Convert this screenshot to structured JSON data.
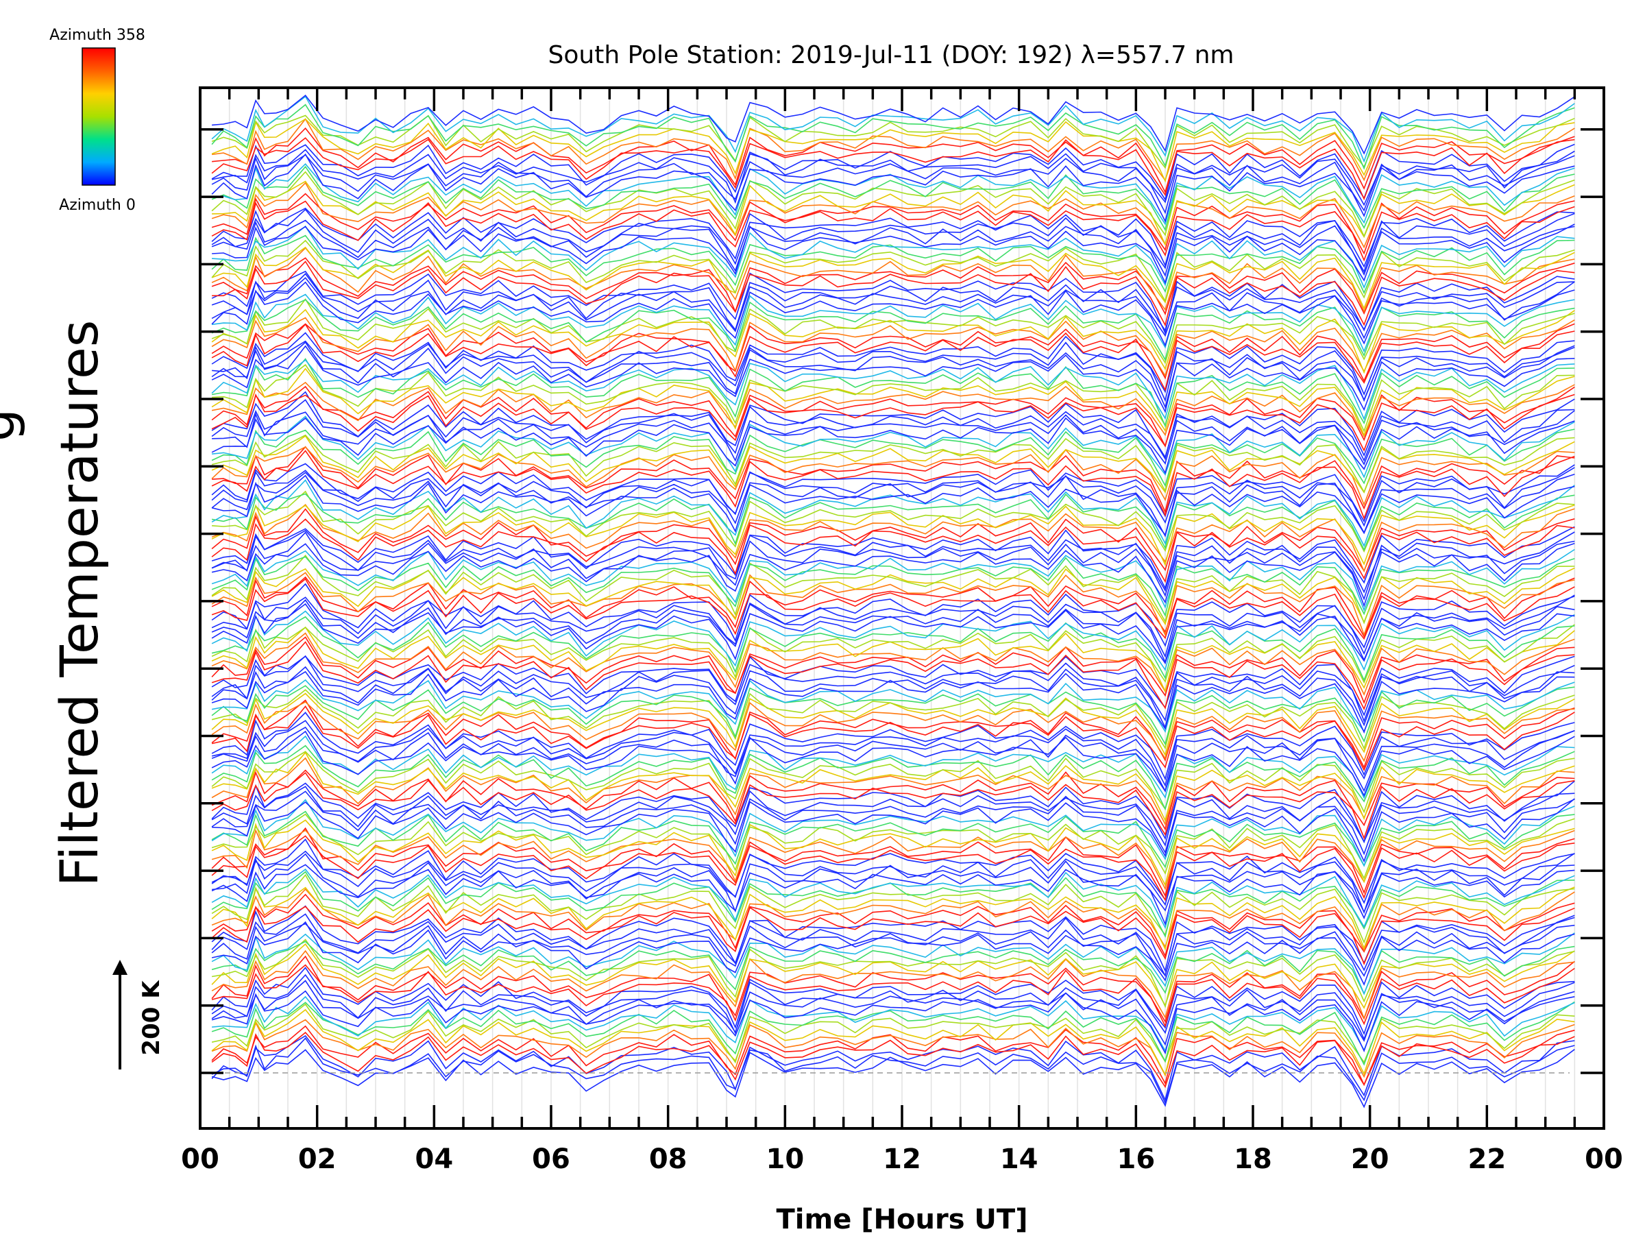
{
  "chart_data": {
    "type": "line",
    "title": "South Pole Station: 2019-Jul-11 (DOY: 192) λ=557.7 nm",
    "xlabel": "Time [Hours UT]",
    "ylabel": "Filtered Temperatures",
    "ylabel_partial": "g",
    "xlim": [
      0,
      24
    ],
    "x_tick_labels": [
      "00",
      "02",
      "04",
      "06",
      "08",
      "10",
      "12",
      "14",
      "16",
      "18",
      "20",
      "22",
      "00"
    ],
    "scale_bar": {
      "label": "200 K",
      "value_k": 200
    },
    "colorbar": {
      "top_label": "Azimuth 358",
      "bottom_label": "Azimuth 0",
      "min": 0,
      "max": 358,
      "colormap": [
        "#0000ff",
        "#00aaff",
        "#00e08a",
        "#a8e000",
        "#ffd000",
        "#ff6000",
        "#ff0000"
      ]
    },
    "stack": {
      "groups": 15,
      "traces_per_group": 11,
      "offset_k_per_trace": 18
    },
    "x": [
      0.2,
      0.4,
      0.6,
      0.8,
      0.95,
      1.1,
      1.3,
      1.5,
      1.8,
      2.1,
      2.4,
      2.7,
      3.0,
      3.3,
      3.6,
      3.9,
      4.2,
      4.5,
      4.8,
      5.1,
      5.4,
      5.7,
      6.0,
      6.3,
      6.6,
      6.9,
      7.2,
      7.5,
      7.8,
      8.1,
      8.4,
      8.7,
      9.0,
      9.15,
      9.4,
      9.7,
      10.0,
      10.3,
      10.6,
      10.9,
      11.2,
      11.5,
      11.8,
      12.1,
      12.4,
      12.7,
      13.0,
      13.3,
      13.6,
      13.9,
      14.2,
      14.5,
      14.8,
      15.1,
      15.4,
      15.7,
      16.0,
      16.25,
      16.5,
      16.7,
      17.0,
      17.3,
      17.6,
      17.9,
      18.2,
      18.5,
      18.8,
      19.1,
      19.4,
      19.7,
      19.9,
      20.2,
      20.5,
      20.8,
      21.1,
      21.4,
      21.7,
      22.0,
      22.3,
      22.6,
      22.9,
      23.2,
      23.5
    ],
    "base_profile_k": [
      -30,
      -10,
      -20,
      -40,
      60,
      10,
      30,
      40,
      90,
      10,
      -10,
      -40,
      10,
      -10,
      20,
      60,
      -20,
      30,
      0,
      40,
      10,
      30,
      -10,
      0,
      -50,
      -20,
      10,
      30,
      20,
      40,
      30,
      30,
      -50,
      -90,
      60,
      30,
      0,
      10,
      30,
      20,
      10,
      30,
      40,
      20,
      10,
      30,
      20,
      40,
      10,
      30,
      40,
      0,
      60,
      10,
      20,
      0,
      30,
      -30,
      -120,
      30,
      10,
      30,
      -10,
      30,
      0,
      20,
      -20,
      30,
      40,
      -40,
      -120,
      40,
      10,
      30,
      20,
      30,
      0,
      10,
      -40,
      0,
      20,
      50,
      70
    ],
    "azimuth_color_sequence": [
      "blue",
      "blue",
      "blue",
      "red",
      "red",
      "orange",
      "yellow",
      "yellow-green",
      "green",
      "cyan",
      "blue"
    ]
  }
}
